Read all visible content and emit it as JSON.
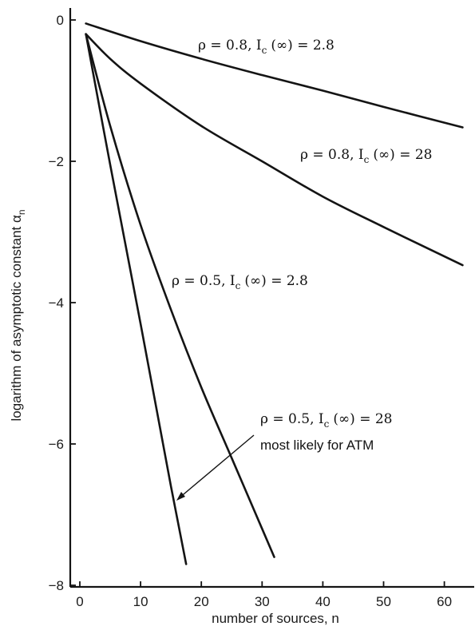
{
  "chart_data": {
    "type": "line",
    "title": "",
    "xlabel": "number of sources, n",
    "ylabel": "logarithm of asymptotic constant α",
    "ylabel_subscript": "n",
    "xlim": [
      -1,
      64
    ],
    "ylim": [
      -8.1,
      0.15
    ],
    "xticks": [
      0,
      10,
      20,
      30,
      40,
      50,
      60
    ],
    "yticks": [
      0,
      -2,
      -4,
      -6,
      -8
    ],
    "xtick_labels": [
      "0",
      "10",
      "20",
      "30",
      "40",
      "50",
      "60"
    ],
    "ytick_labels": [
      "0",
      "−2",
      "−4",
      "−6",
      "−8"
    ],
    "grid": false,
    "series": [
      {
        "label": "ρ = 0.8, I_c (∞) = 2.8",
        "x": [
          1,
          10,
          20,
          30,
          40,
          50,
          63
        ],
        "y": [
          -0.05,
          -0.3,
          -0.55,
          -0.78,
          -1.0,
          -1.23,
          -1.52
        ]
      },
      {
        "label": "ρ = 0.8, I_c (∞) = 28",
        "x": [
          1,
          5,
          10,
          20,
          30,
          40,
          50,
          63
        ],
        "y": [
          -0.2,
          -0.55,
          -0.9,
          -1.5,
          -2.0,
          -2.5,
          -2.93,
          -3.47
        ]
      },
      {
        "label": "ρ = 0.5, I_c (∞) = 2.8",
        "x": [
          1,
          5,
          10,
          15,
          20,
          25,
          30,
          32
        ],
        "y": [
          -0.2,
          -1.5,
          -2.9,
          -4.1,
          -5.2,
          -6.2,
          -7.2,
          -7.6
        ]
      },
      {
        "label": "ρ = 0.5, I_c (∞) = 28 most likely for ATM",
        "x": [
          1,
          5,
          10,
          15,
          17.5
        ],
        "y": [
          -0.2,
          -2.05,
          -4.3,
          -6.6,
          -7.7
        ]
      }
    ],
    "annotations": [
      {
        "rho": "ρ = 0.8,",
        "ic": "I",
        "sub": "c",
        "rest": "(∞) = 2.8"
      },
      {
        "rho": "ρ = 0.8,",
        "ic": "I",
        "sub": "c",
        "rest": "(∞) = 28"
      },
      {
        "rho": "ρ = 0.5,",
        "ic": "I",
        "sub": "c",
        "rest": "(∞) = 2.8"
      },
      {
        "rho": "ρ = 0.5,",
        "ic": "I",
        "sub": "c",
        "rest": "(∞) = 28",
        "line2": "most likely for ATM"
      }
    ]
  }
}
